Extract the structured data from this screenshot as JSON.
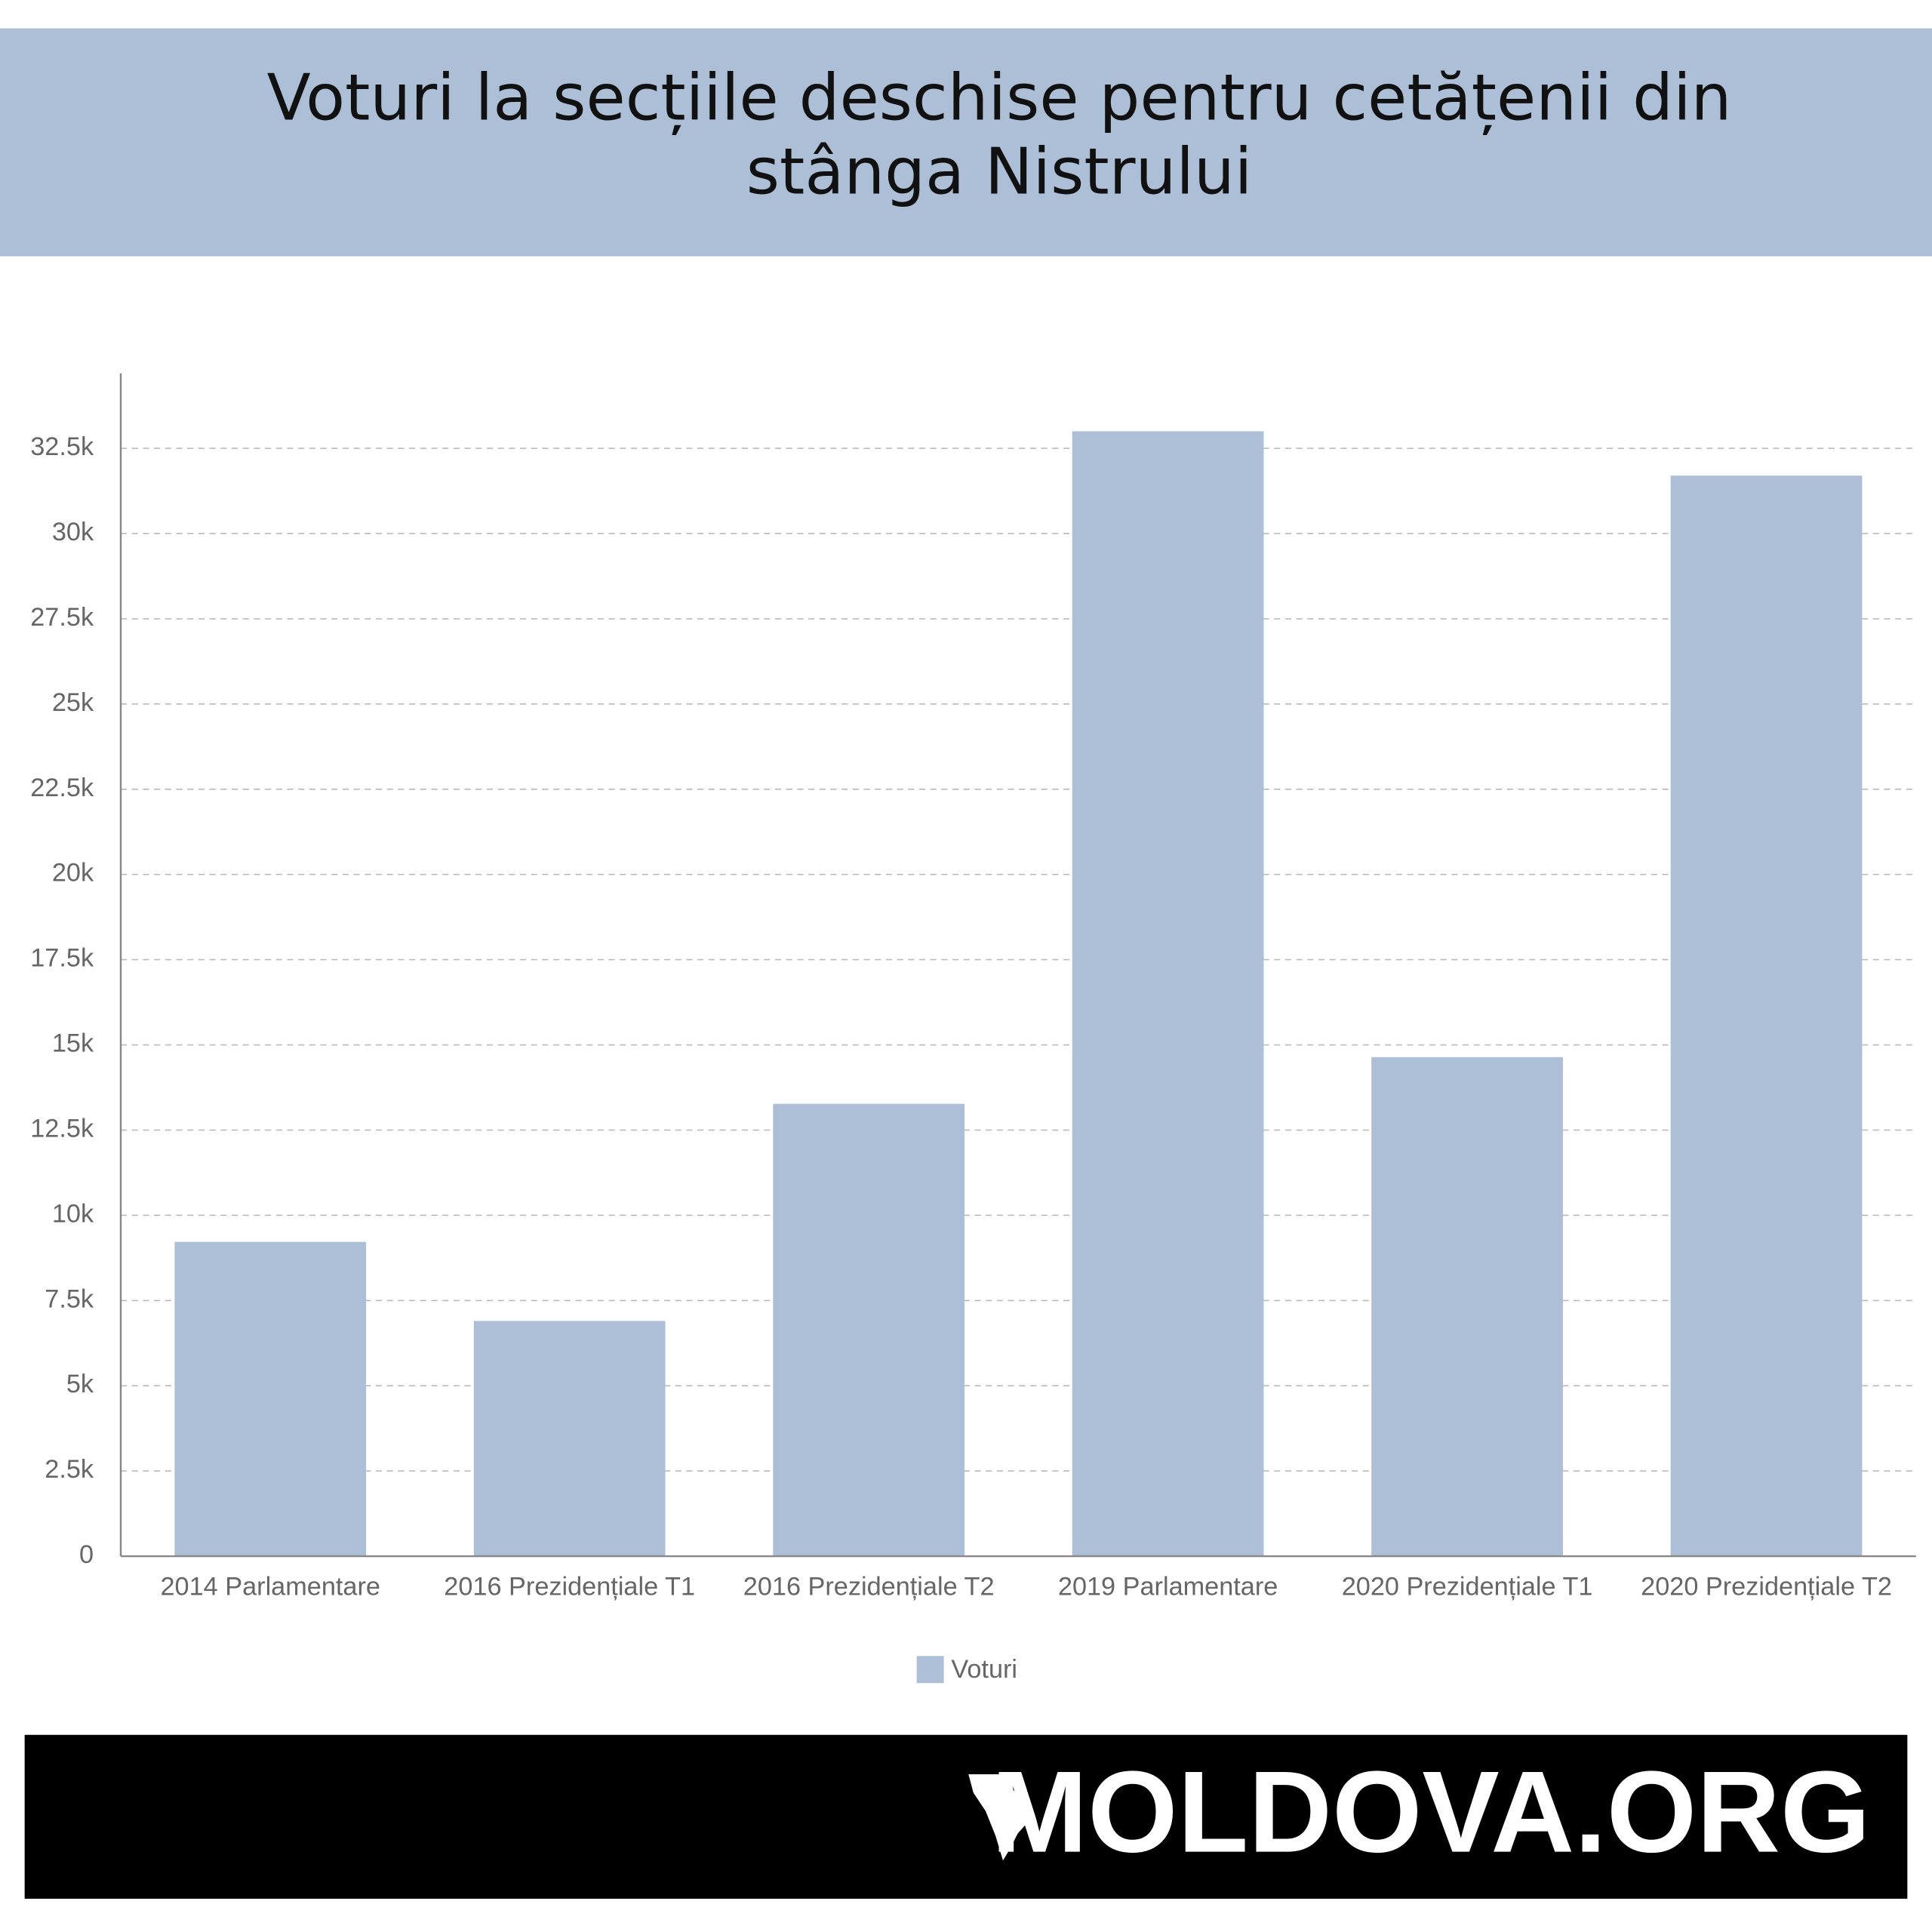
{
  "chart_data": {
    "type": "bar",
    "title": "Voturi la secțiile deschise pentru cetățenii din stânga Nistrului",
    "categories": [
      "2014 Parlamentare",
      "2016 Prezidențiale T1",
      "2016 Prezidențiale T2",
      "2019 Parlamentare",
      "2020 Prezidențiale T1",
      "2020 Prezidențiale T2"
    ],
    "series": [
      {
        "name": "Voturi",
        "color": "#adbfd6",
        "values": [
          9220,
          6900,
          13270,
          33000,
          14640,
          31700
        ]
      }
    ],
    "ylim": [
      0,
      34700
    ],
    "yticks": [
      0,
      {
        "value": 2500,
        "label": "2.5k"
      },
      {
        "value": 5000,
        "label": "5k"
      },
      {
        "value": 7500,
        "label": "7.5k"
      },
      {
        "value": 10000,
        "label": "10k"
      },
      {
        "value": 12500,
        "label": "12.5k"
      },
      {
        "value": 15000,
        "label": "15k"
      },
      {
        "value": 17500,
        "label": "17.5k"
      },
      {
        "value": 20000,
        "label": "20k"
      },
      {
        "value": 22500,
        "label": "22.5k"
      },
      {
        "value": 25000,
        "label": "25k"
      },
      {
        "value": 27500,
        "label": "27.5k"
      },
      {
        "value": 30000,
        "label": "30k"
      },
      {
        "value": 32500,
        "label": "32.5k"
      }
    ],
    "grid": true,
    "legend": "bottom"
  },
  "footer": {
    "logo": "MOLDOVA.ORG"
  }
}
